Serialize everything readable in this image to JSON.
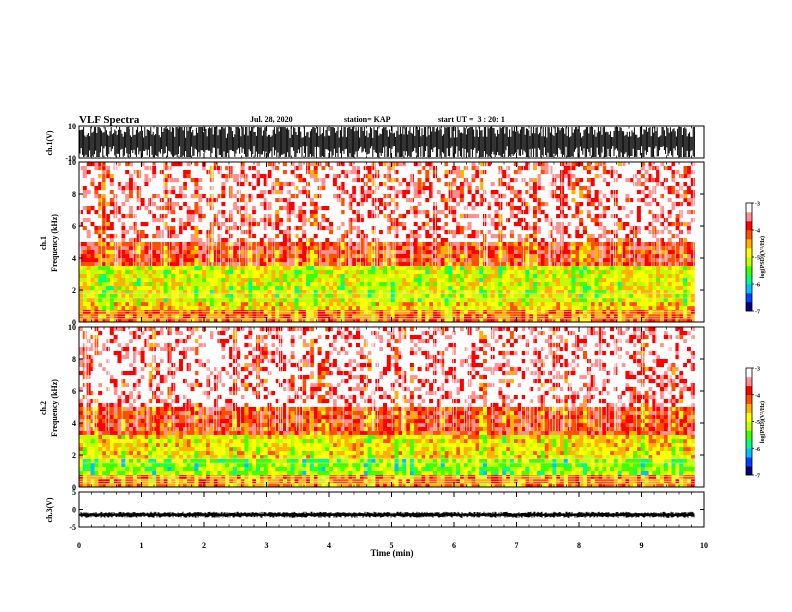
{
  "header": {
    "title": "VLF Spectra",
    "date": "Jul. 28, 2020",
    "station": "station= KAP",
    "start_time": "start UT =  3 : 20: 1"
  },
  "chart_data": [
    {
      "type": "line",
      "panel": "ch1-waveform",
      "ylabel": "ch.1(V)",
      "ylim": [
        -10,
        10
      ],
      "y_ticks": [
        "10",
        "-10"
      ],
      "xlim": [
        0,
        9.85
      ],
      "note_color": "#000000"
    },
    {
      "type": "heatmap",
      "panel": "ch1-spectrogram",
      "ylabel": [
        "ch.1",
        "Frequency (kHz)"
      ],
      "ylim": [
        0,
        10
      ],
      "y_ticks": [
        "0",
        "2",
        "4",
        "6",
        "8",
        "10"
      ],
      "xlim": [
        0,
        9.85
      ],
      "colorbar": {
        "label": "log(PSD)(V²/Hz)",
        "range": [
          -7,
          -3
        ],
        "ticks": [
          "-3",
          "-4",
          "-5",
          "-6",
          "-7"
        ],
        "colors": [
          "#000080",
          "#0040ff",
          "#00c0ff",
          "#00ff80",
          "#40ff00",
          "#c0ff00",
          "#ffff00",
          "#ffb000",
          "#ff5000",
          "#ff0000",
          "#ff9090",
          "#ffffff"
        ]
      },
      "bands_khz": [
        {
          "from": 0.0,
          "to": 0.8,
          "level": -4.2
        },
        {
          "from": 0.8,
          "to": 1.2,
          "level": -4.6
        },
        {
          "from": 1.2,
          "to": 3.5,
          "level": -4.9
        },
        {
          "from": 3.5,
          "to": 5.0,
          "level": -3.9
        },
        {
          "from": 5.0,
          "to": 10.0,
          "level": -3.6
        }
      ]
    },
    {
      "type": "heatmap",
      "panel": "ch2-spectrogram",
      "ylabel": [
        "ch.2",
        "Frequency (kHz)"
      ],
      "ylim": [
        0,
        10
      ],
      "y_ticks": [
        "0",
        "2",
        "4",
        "6",
        "8",
        "10"
      ],
      "xlim": [
        0,
        9.85
      ],
      "colorbar": {
        "label": "log(PSD)(V²/Hz)",
        "range": [
          -7,
          -3
        ],
        "ticks": [
          "-3",
          "-4",
          "-5",
          "-6",
          "-7"
        ],
        "colors": [
          "#000080",
          "#0040ff",
          "#00c0ff",
          "#00ff80",
          "#40ff00",
          "#c0ff00",
          "#ffff00",
          "#ffb000",
          "#ff5000",
          "#ff0000",
          "#ff9090",
          "#ffffff"
        ]
      },
      "bands_khz": [
        {
          "from": 0.0,
          "to": 0.8,
          "level": -4.3
        },
        {
          "from": 0.8,
          "to": 1.8,
          "level": -5.2
        },
        {
          "from": 1.8,
          "to": 3.3,
          "level": -4.7
        },
        {
          "from": 3.3,
          "to": 5.0,
          "level": -3.9
        },
        {
          "from": 5.0,
          "to": 10.0,
          "level": -3.5
        }
      ]
    },
    {
      "type": "line",
      "panel": "ch3-waveform",
      "ylabel": "ch.3(V)",
      "ylim": [
        -5,
        5
      ],
      "y_ticks": [
        "5",
        "0",
        "-5"
      ],
      "xlim": [
        0,
        9.85
      ],
      "baseline": -1.5
    }
  ],
  "x_axis": {
    "label": "Time (min)",
    "range": [
      0,
      10
    ],
    "ticks": [
      "0",
      "1",
      "2",
      "3",
      "4",
      "5",
      "6",
      "7",
      "8",
      "9",
      "10"
    ]
  }
}
